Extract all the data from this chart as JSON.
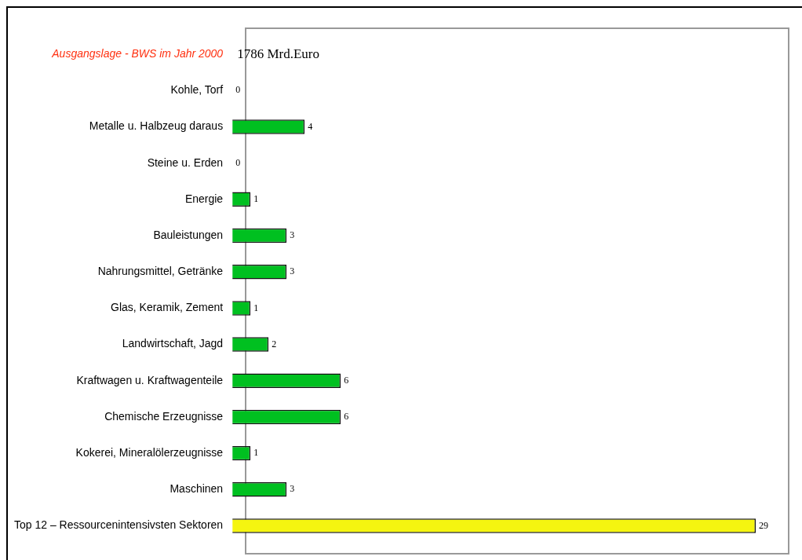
{
  "chart_data": {
    "type": "bar",
    "orientation": "horizontal",
    "categories": [
      "Ausgangslage - BWS im Jahr 2000",
      "Kohle, Torf",
      "Metalle u. Halbzeug daraus",
      "Steine u. Erden",
      "Energie",
      "Bauleistungen",
      "Nahrungsmittel, Getränke",
      "Glas, Keramik, Zement",
      "Landwirtschaft, Jagd",
      "Kraftwagen u. Kraftwagenteile",
      "Chemische Erzeugnisse",
      "Kokerei, Mineralölerzeugnisse",
      "Maschinen",
      "Top 12 – Ressourcenintensivsten Sektoren"
    ],
    "values": [
      null,
      0,
      4,
      0,
      1,
      3,
      3,
      1,
      2,
      6,
      6,
      1,
      3,
      29
    ],
    "value_labels": [
      "1786 Mrd.Euro",
      "0",
      "4",
      "0",
      "1",
      "3",
      "3",
      "1",
      "2",
      "6",
      "6",
      "1",
      "3",
      "29"
    ],
    "colors": [
      "#00c020",
      "#00c020",
      "#00c020",
      "#00c020",
      "#00c020",
      "#00c020",
      "#00c020",
      "#00c020",
      "#00c020",
      "#00c020",
      "#00c020",
      "#00c020",
      "#00c020",
      "#f5f510"
    ],
    "legend": false,
    "grid": false
  }
}
